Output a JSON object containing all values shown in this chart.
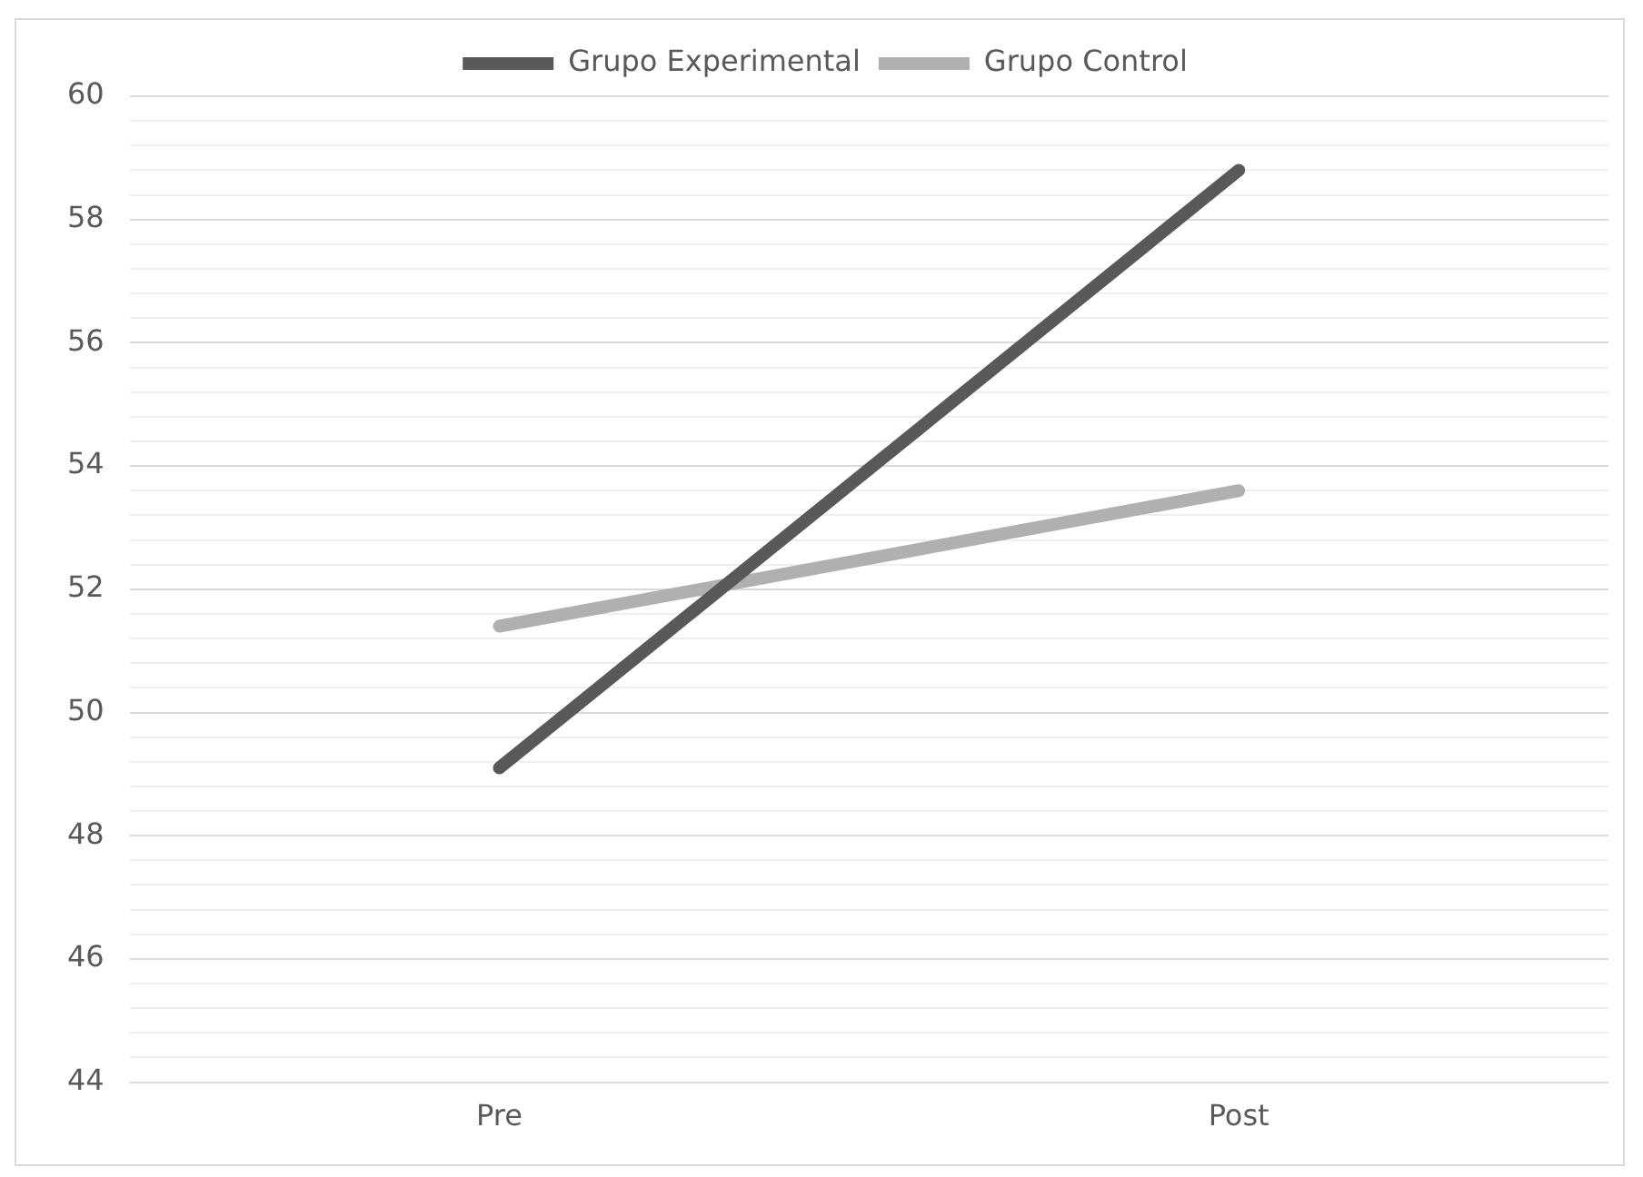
{
  "chart_data": {
    "type": "line",
    "categories": [
      "Pre",
      "Post"
    ],
    "series": [
      {
        "name": "Grupo Experimental",
        "color": "#595959",
        "values": [
          49.1,
          58.8
        ]
      },
      {
        "name": "Grupo Control",
        "color": "#b0b0b0",
        "values": [
          51.4,
          53.6
        ]
      }
    ],
    "ylim": [
      44,
      60
    ],
    "yticks": [
      44,
      {
        "value": 44.4,
        "label": null
      },
      {
        "value": 44.8,
        "label": null
      },
      {
        "value": 45.2,
        "label": null
      },
      {
        "value": 45.6,
        "label": null
      },
      46,
      {
        "value": 46.4,
        "label": null
      },
      {
        "value": 46.8,
        "label": null
      },
      {
        "value": 47.2,
        "label": null
      },
      {
        "value": 47.6,
        "label": null
      },
      48,
      {
        "value": 48.4,
        "label": null
      },
      {
        "value": 48.8,
        "label": null
      },
      {
        "value": 49.2,
        "label": null
      },
      {
        "value": 49.6,
        "label": null
      },
      50,
      {
        "value": 50.4,
        "label": null
      },
      {
        "value": 50.8,
        "label": null
      },
      {
        "value": 51.2,
        "label": null
      },
      {
        "value": 51.6,
        "label": null
      },
      52,
      {
        "value": 52.4,
        "label": null
      },
      {
        "value": 52.8,
        "label": null
      },
      {
        "value": 53.2,
        "label": null
      },
      {
        "value": 53.6,
        "label": null
      },
      54,
      {
        "value": 54.4,
        "label": null
      },
      {
        "value": 54.8,
        "label": null
      },
      {
        "value": 55.2,
        "label": null
      },
      {
        "value": 55.6,
        "label": null
      },
      56,
      {
        "value": 56.4,
        "label": null
      },
      {
        "value": 56.8,
        "label": null
      },
      {
        "value": 57.2,
        "label": null
      },
      {
        "value": 57.6,
        "label": null
      },
      58,
      {
        "value": 58.4,
        "label": null
      },
      {
        "value": 58.8,
        "label": null
      },
      {
        "value": 59.2,
        "label": null
      },
      {
        "value": 59.6,
        "label": null
      },
      60
    ],
    "grid": "y",
    "legend": "top",
    "marker": "none",
    "line_style": "solid"
  }
}
